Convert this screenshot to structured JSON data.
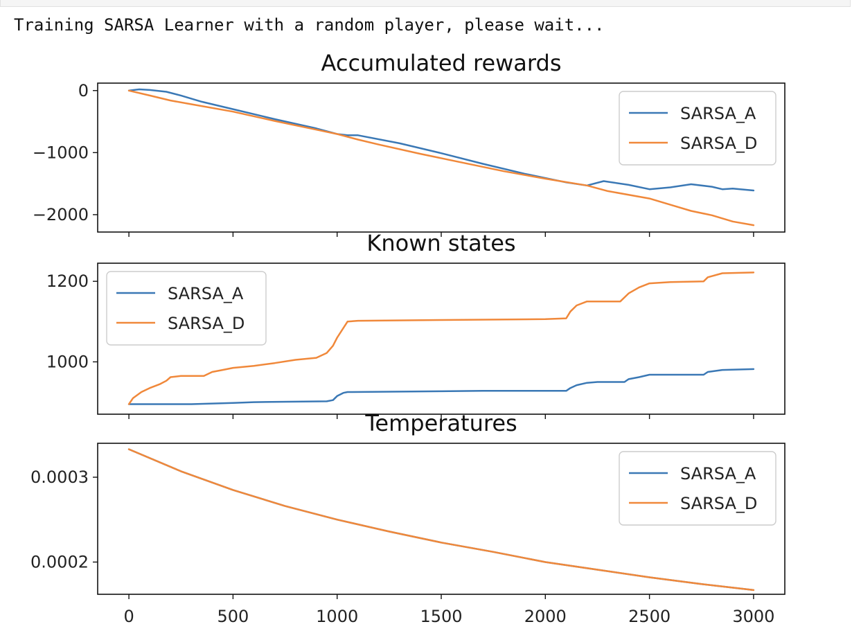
{
  "output_text": "Training SARSA Learner with a random player, please wait...",
  "colors": {
    "SARSA_A": "#3a78b5",
    "SARSA_D": "#f0883a"
  },
  "chart_data": [
    {
      "type": "line",
      "title": "Accumulated rewards",
      "xlim": [
        -150,
        3150
      ],
      "ylim": [
        -2280,
        120
      ],
      "xticks": [
        0,
        500,
        1000,
        1500,
        2000,
        2500,
        3000
      ],
      "yticks": [
        0,
        -1000,
        -2000
      ],
      "ytick_labels": [
        "0",
        "−1000",
        "−2000"
      ],
      "legend": "top-right",
      "series": [
        {
          "name": "SARSA_A",
          "x": [
            0,
            50,
            100,
            180,
            250,
            350,
            500,
            700,
            900,
            1000,
            1050,
            1100,
            1300,
            1500,
            1700,
            1900,
            2100,
            2200,
            2280,
            2400,
            2500,
            2600,
            2700,
            2800,
            2850,
            2900,
            3000
          ],
          "y": [
            0,
            20,
            10,
            -20,
            -80,
            -180,
            -300,
            -460,
            -610,
            -700,
            -720,
            -720,
            -850,
            -1010,
            -1180,
            -1340,
            -1480,
            -1530,
            -1460,
            -1520,
            -1590,
            -1560,
            -1510,
            -1550,
            -1590,
            -1580,
            -1610
          ]
        },
        {
          "name": "SARSA_D",
          "x": [
            0,
            100,
            200,
            300,
            500,
            700,
            900,
            1000,
            1100,
            1200,
            1400,
            1600,
            1800,
            2000,
            2200,
            2300,
            2500,
            2600,
            2700,
            2800,
            2900,
            3000
          ],
          "y": [
            0,
            -80,
            -160,
            -220,
            -340,
            -490,
            -630,
            -700,
            -790,
            -870,
            -1020,
            -1160,
            -1300,
            -1420,
            -1530,
            -1620,
            -1740,
            -1840,
            -1940,
            -2010,
            -2110,
            -2170
          ]
        }
      ]
    },
    {
      "type": "line",
      "title": "Known states",
      "xlim": [
        -150,
        3150
      ],
      "ylim": [
        870,
        1245
      ],
      "xticks": [
        0,
        500,
        1000,
        1500,
        2000,
        2500,
        3000
      ],
      "yticks": [
        1000,
        1200
      ],
      "ytick_labels": [
        "1000",
        "1200"
      ],
      "legend": "top-left",
      "series": [
        {
          "name": "SARSA_A",
          "x": [
            0,
            300,
            500,
            600,
            950,
            980,
            1000,
            1030,
            1050,
            1500,
            1700,
            2100,
            2120,
            2150,
            2200,
            2250,
            2380,
            2400,
            2450,
            2500,
            2760,
            2780,
            2850,
            3000
          ],
          "y": [
            895,
            895,
            898,
            900,
            902,
            905,
            915,
            923,
            925,
            927,
            928,
            928,
            935,
            942,
            948,
            950,
            950,
            957,
            962,
            968,
            968,
            975,
            980,
            982
          ]
        },
        {
          "name": "SARSA_D",
          "x": [
            0,
            20,
            60,
            100,
            150,
            180,
            200,
            250,
            300,
            360,
            400,
            450,
            500,
            600,
            700,
            800,
            900,
            950,
            980,
            1000,
            1050,
            1100,
            1500,
            2000,
            2100,
            2120,
            2150,
            2200,
            2250,
            2360,
            2400,
            2450,
            2500,
            2600,
            2760,
            2780,
            2850,
            3000
          ],
          "y": [
            895,
            910,
            925,
            935,
            945,
            953,
            962,
            965,
            965,
            965,
            975,
            980,
            985,
            990,
            997,
            1005,
            1010,
            1022,
            1040,
            1060,
            1100,
            1102,
            1104,
            1106,
            1108,
            1125,
            1140,
            1150,
            1150,
            1150,
            1170,
            1185,
            1195,
            1198,
            1200,
            1210,
            1220,
            1222
          ]
        }
      ]
    },
    {
      "type": "line",
      "title": "Temperatures",
      "xlim": [
        -150,
        3150
      ],
      "ylim": [
        0.000162,
        0.00034
      ],
      "xticks": [
        0,
        500,
        1000,
        1500,
        2000,
        2500,
        3000
      ],
      "yticks": [
        0.0003,
        0.0002
      ],
      "ytick_labels": [
        "0.0003",
        "0.0002"
      ],
      "legend": "top-right",
      "series": [
        {
          "name": "SARSA_A",
          "x": [
            0,
            250,
            500,
            750,
            1000,
            1250,
            1500,
            1750,
            2000,
            2250,
            2500,
            2750,
            3000
          ],
          "y": [
            0.000333,
            0.000307,
            0.000285,
            0.000266,
            0.00025,
            0.000236,
            0.000223,
            0.000212,
            0.0002,
            0.000191,
            0.000182,
            0.000174,
            0.000167
          ]
        },
        {
          "name": "SARSA_D",
          "x": [
            0,
            250,
            500,
            750,
            1000,
            1250,
            1500,
            1750,
            2000,
            2250,
            2500,
            2750,
            3000
          ],
          "y": [
            0.000333,
            0.000307,
            0.000285,
            0.000266,
            0.00025,
            0.000236,
            0.000223,
            0.000212,
            0.0002,
            0.000191,
            0.000182,
            0.000174,
            0.000167
          ]
        }
      ]
    }
  ]
}
